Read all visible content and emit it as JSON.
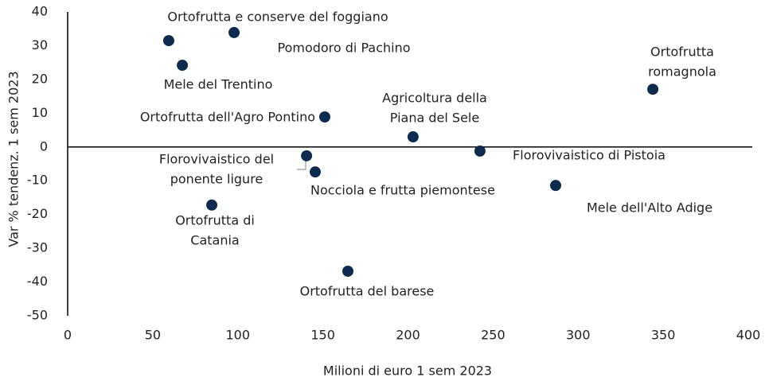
{
  "chart_data": {
    "type": "scatter",
    "x_label": "Milioni di euro 1 sem 2023",
    "y_label": "Var % tendenz. 1 sem 2023",
    "color": "#0d2b4e",
    "xlim": [
      0,
      400
    ],
    "xticks": [
      0,
      50,
      100,
      150,
      200,
      250,
      300,
      350,
      400
    ],
    "ylim": [
      -50,
      40
    ],
    "yticks": [
      -50,
      -40,
      -30,
      -20,
      -10,
      0,
      10,
      20,
      30,
      40
    ],
    "grid": false,
    "labels": [
      [
        "Ortofrutta e conserve del foggiano"
      ],
      [
        "Pomodoro di Pachino"
      ],
      [
        "Mele del Trentino"
      ],
      [
        "Ortofrutta dell'Agro Pontino"
      ],
      [
        "Agricoltura della",
        "Piana del Sele"
      ],
      [
        "Ortofrutta",
        "romagnola"
      ],
      [
        "Florovivaistico del",
        "ponente ligure"
      ],
      [
        "Nocciola e frutta piemontese"
      ],
      [
        "Florovivaistico di Pistoia"
      ],
      [
        "Mele dell'Alto Adige"
      ],
      [
        "Ortofrutta di",
        "Catania"
      ],
      [
        "Ortofrutta del barese"
      ]
    ],
    "x": [
      59.4,
      97.8,
      67.4,
      151.1,
      203,
      343.9,
      140.4,
      145.5,
      242.3,
      286.8,
      84.7,
      164.7
    ],
    "y": [
      31.5,
      33.9,
      24.2,
      8.9,
      3.0,
      17.1,
      -2.6,
      -7.4,
      -1.2,
      -11.4,
      -17.2,
      -36.8
    ]
  }
}
